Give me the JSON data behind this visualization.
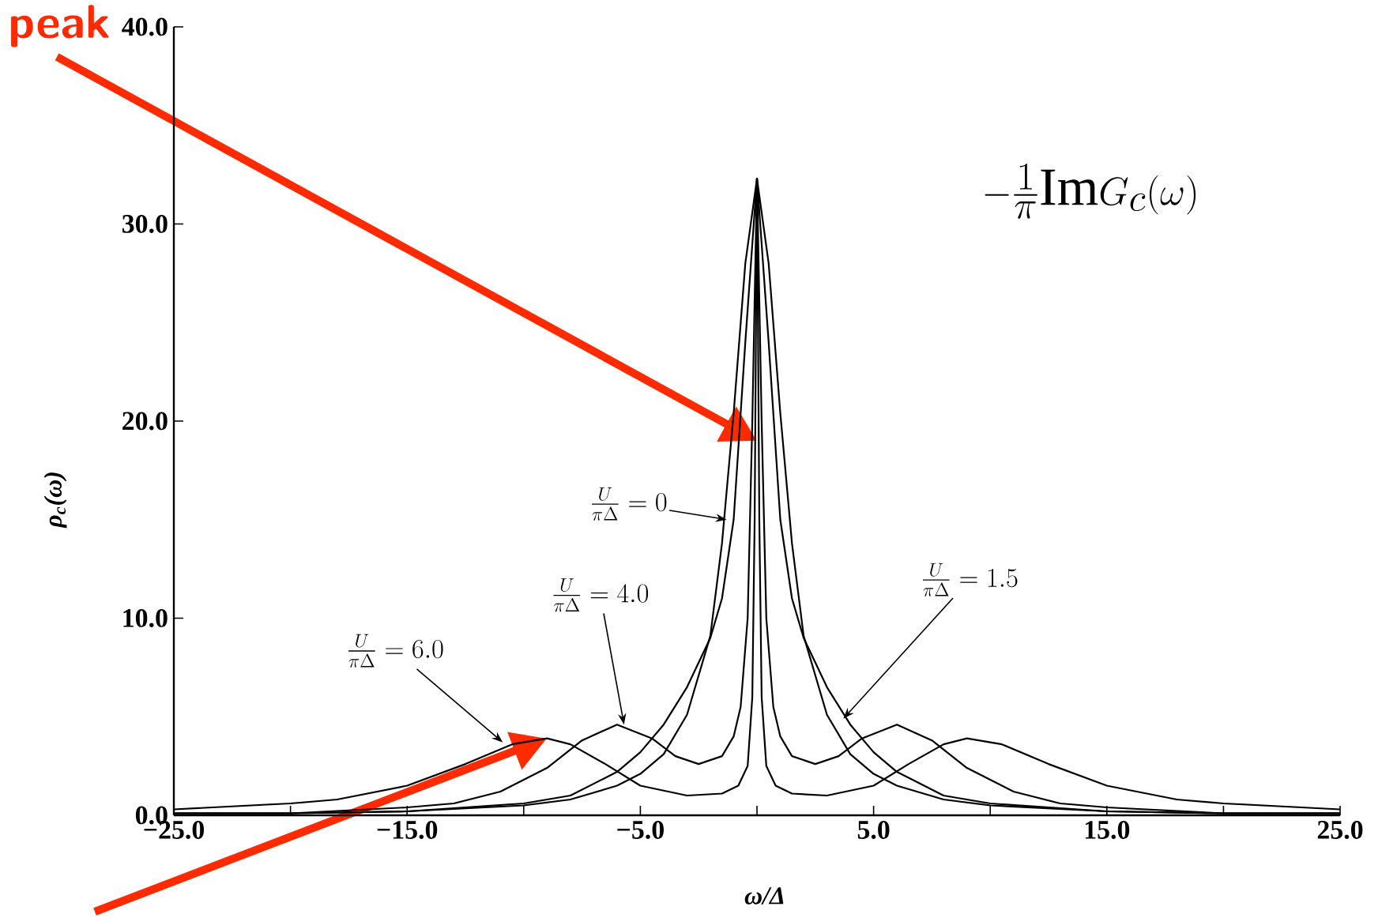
{
  "chart_data": {
    "type": "line",
    "xlabel": "ω/Δ",
    "ylabel": "ρ$_{c}$(ω)",
    "xlim": [
      -25,
      25
    ],
    "ylim": [
      0,
      40
    ],
    "xticks": [
      {
        "value": -25,
        "label": "−25.0"
      },
      {
        "value": -20,
        "label": null
      },
      {
        "value": -15,
        "label": "−15.0"
      },
      {
        "value": -10,
        "label": null
      },
      {
        "value": -5,
        "label": "−5.0"
      },
      {
        "value": 0,
        "label": null
      },
      {
        "value": 5,
        "label": "5.0"
      },
      {
        "value": 10,
        "label": null
      },
      {
        "value": 15,
        "label": "15.0"
      },
      {
        "value": 20,
        "label": null
      },
      {
        "value": 25,
        "label": "25.0"
      }
    ],
    "yticks": [
      {
        "value": 0,
        "label": "0.0"
      },
      {
        "value": 10,
        "label": "10.0"
      },
      {
        "value": 20,
        "label": "20.0"
      },
      {
        "value": 30,
        "label": "30.0"
      },
      {
        "value": 40,
        "label": "40.0"
      }
    ],
    "grid": false,
    "marker": "none",
    "line_style": "solid",
    "series": [
      {
        "color": "#000000",
        "x": [
          -25,
          -20,
          -15,
          -10,
          -8,
          -6,
          -5,
          -4,
          -3,
          -2,
          -1.5,
          -1,
          -0.5,
          0,
          0.5,
          1,
          1.5,
          2,
          3,
          4,
          5,
          6,
          8,
          10,
          15,
          20,
          25
        ],
        "values": [
          0.1,
          0.1,
          0.2,
          0.5,
          0.8,
          1.5,
          2.1,
          3.1,
          5.1,
          9.1,
          13.8,
          20.4,
          28.0,
          32.3,
          28.0,
          20.4,
          13.8,
          9.1,
          5.1,
          3.1,
          2.1,
          1.5,
          0.8,
          0.5,
          0.2,
          0.1,
          0.1
        ]
      },
      {
        "color": "#000000",
        "x": [
          -25,
          -20,
          -15,
          -10,
          -8,
          -6,
          -5,
          -4,
          -3,
          -2,
          -1.5,
          -1,
          -0.5,
          0,
          0.5,
          1,
          1.5,
          2,
          3,
          4,
          5,
          6,
          8,
          10,
          15,
          20,
          25
        ],
        "values": [
          0.1,
          0.1,
          0.2,
          0.6,
          1.0,
          2.2,
          3.2,
          4.6,
          6.5,
          9.0,
          11.0,
          15.0,
          24.0,
          32.3,
          24.0,
          15.0,
          11.0,
          9.0,
          6.5,
          4.6,
          3.2,
          2.2,
          1.0,
          0.6,
          0.2,
          0.1,
          0.1
        ]
      },
      {
        "color": "#000000",
        "x": [
          -25,
          -20,
          -15,
          -13,
          -11,
          -9,
          -7.5,
          -6,
          -4.5,
          -3.5,
          -2.5,
          -1.5,
          -1,
          -0.7,
          -0.4,
          -0.2,
          0,
          0.2,
          0.4,
          0.7,
          1,
          1.5,
          2.5,
          3.5,
          4.5,
          6,
          7.5,
          9,
          11,
          13,
          15,
          20,
          25
        ],
        "values": [
          0.1,
          0.1,
          0.4,
          0.6,
          1.2,
          2.4,
          3.8,
          4.6,
          3.9,
          3.0,
          2.6,
          3.0,
          4.0,
          5.5,
          10.0,
          20.0,
          32.3,
          20.0,
          10.0,
          5.5,
          4.0,
          3.0,
          2.6,
          3.0,
          3.9,
          4.6,
          3.8,
          2.4,
          1.2,
          0.6,
          0.4,
          0.1,
          0.1
        ]
      },
      {
        "color": "#000000",
        "x": [
          -25,
          -20,
          -18,
          -15,
          -12.5,
          -10.5,
          -9,
          -8,
          -6.5,
          -5,
          -3,
          -1.5,
          -0.8,
          -0.4,
          -0.2,
          -0.1,
          0,
          0.1,
          0.2,
          0.4,
          0.8,
          1.5,
          3,
          5,
          6.5,
          8,
          9,
          10.5,
          12.5,
          15,
          18,
          20,
          25
        ],
        "values": [
          0.3,
          0.6,
          0.8,
          1.5,
          2.6,
          3.6,
          3.9,
          3.6,
          2.6,
          1.5,
          1.0,
          1.1,
          1.5,
          2.5,
          6.0,
          15.0,
          32.3,
          15.0,
          6.0,
          2.5,
          1.5,
          1.1,
          1.0,
          1.5,
          2.6,
          3.6,
          3.9,
          3.6,
          2.6,
          1.5,
          0.8,
          0.6,
          0.3
        ]
      }
    ],
    "annotations": [
      "peak",
      {
        "text": "\\frac{U}{\\pi\\Delta}=0",
        "x": -1.3,
        "y": 15
      },
      {
        "text": "\\frac{U}{\\pi\\Delta}=4.0",
        "x": -5.7,
        "y": 4.6
      },
      {
        "text": "\\frac{U}{\\pi\\Delta}=6.0",
        "x": -10.9,
        "y": 3.7
      },
      {
        "text": "\\frac{U}{\\pi\\Delta}=1.5",
        "x": 3.7,
        "y": 4.9
      },
      "-\\frac{1}{\\pi}\\mathrm{Im}G_c(\\omega)"
    ]
  }
}
